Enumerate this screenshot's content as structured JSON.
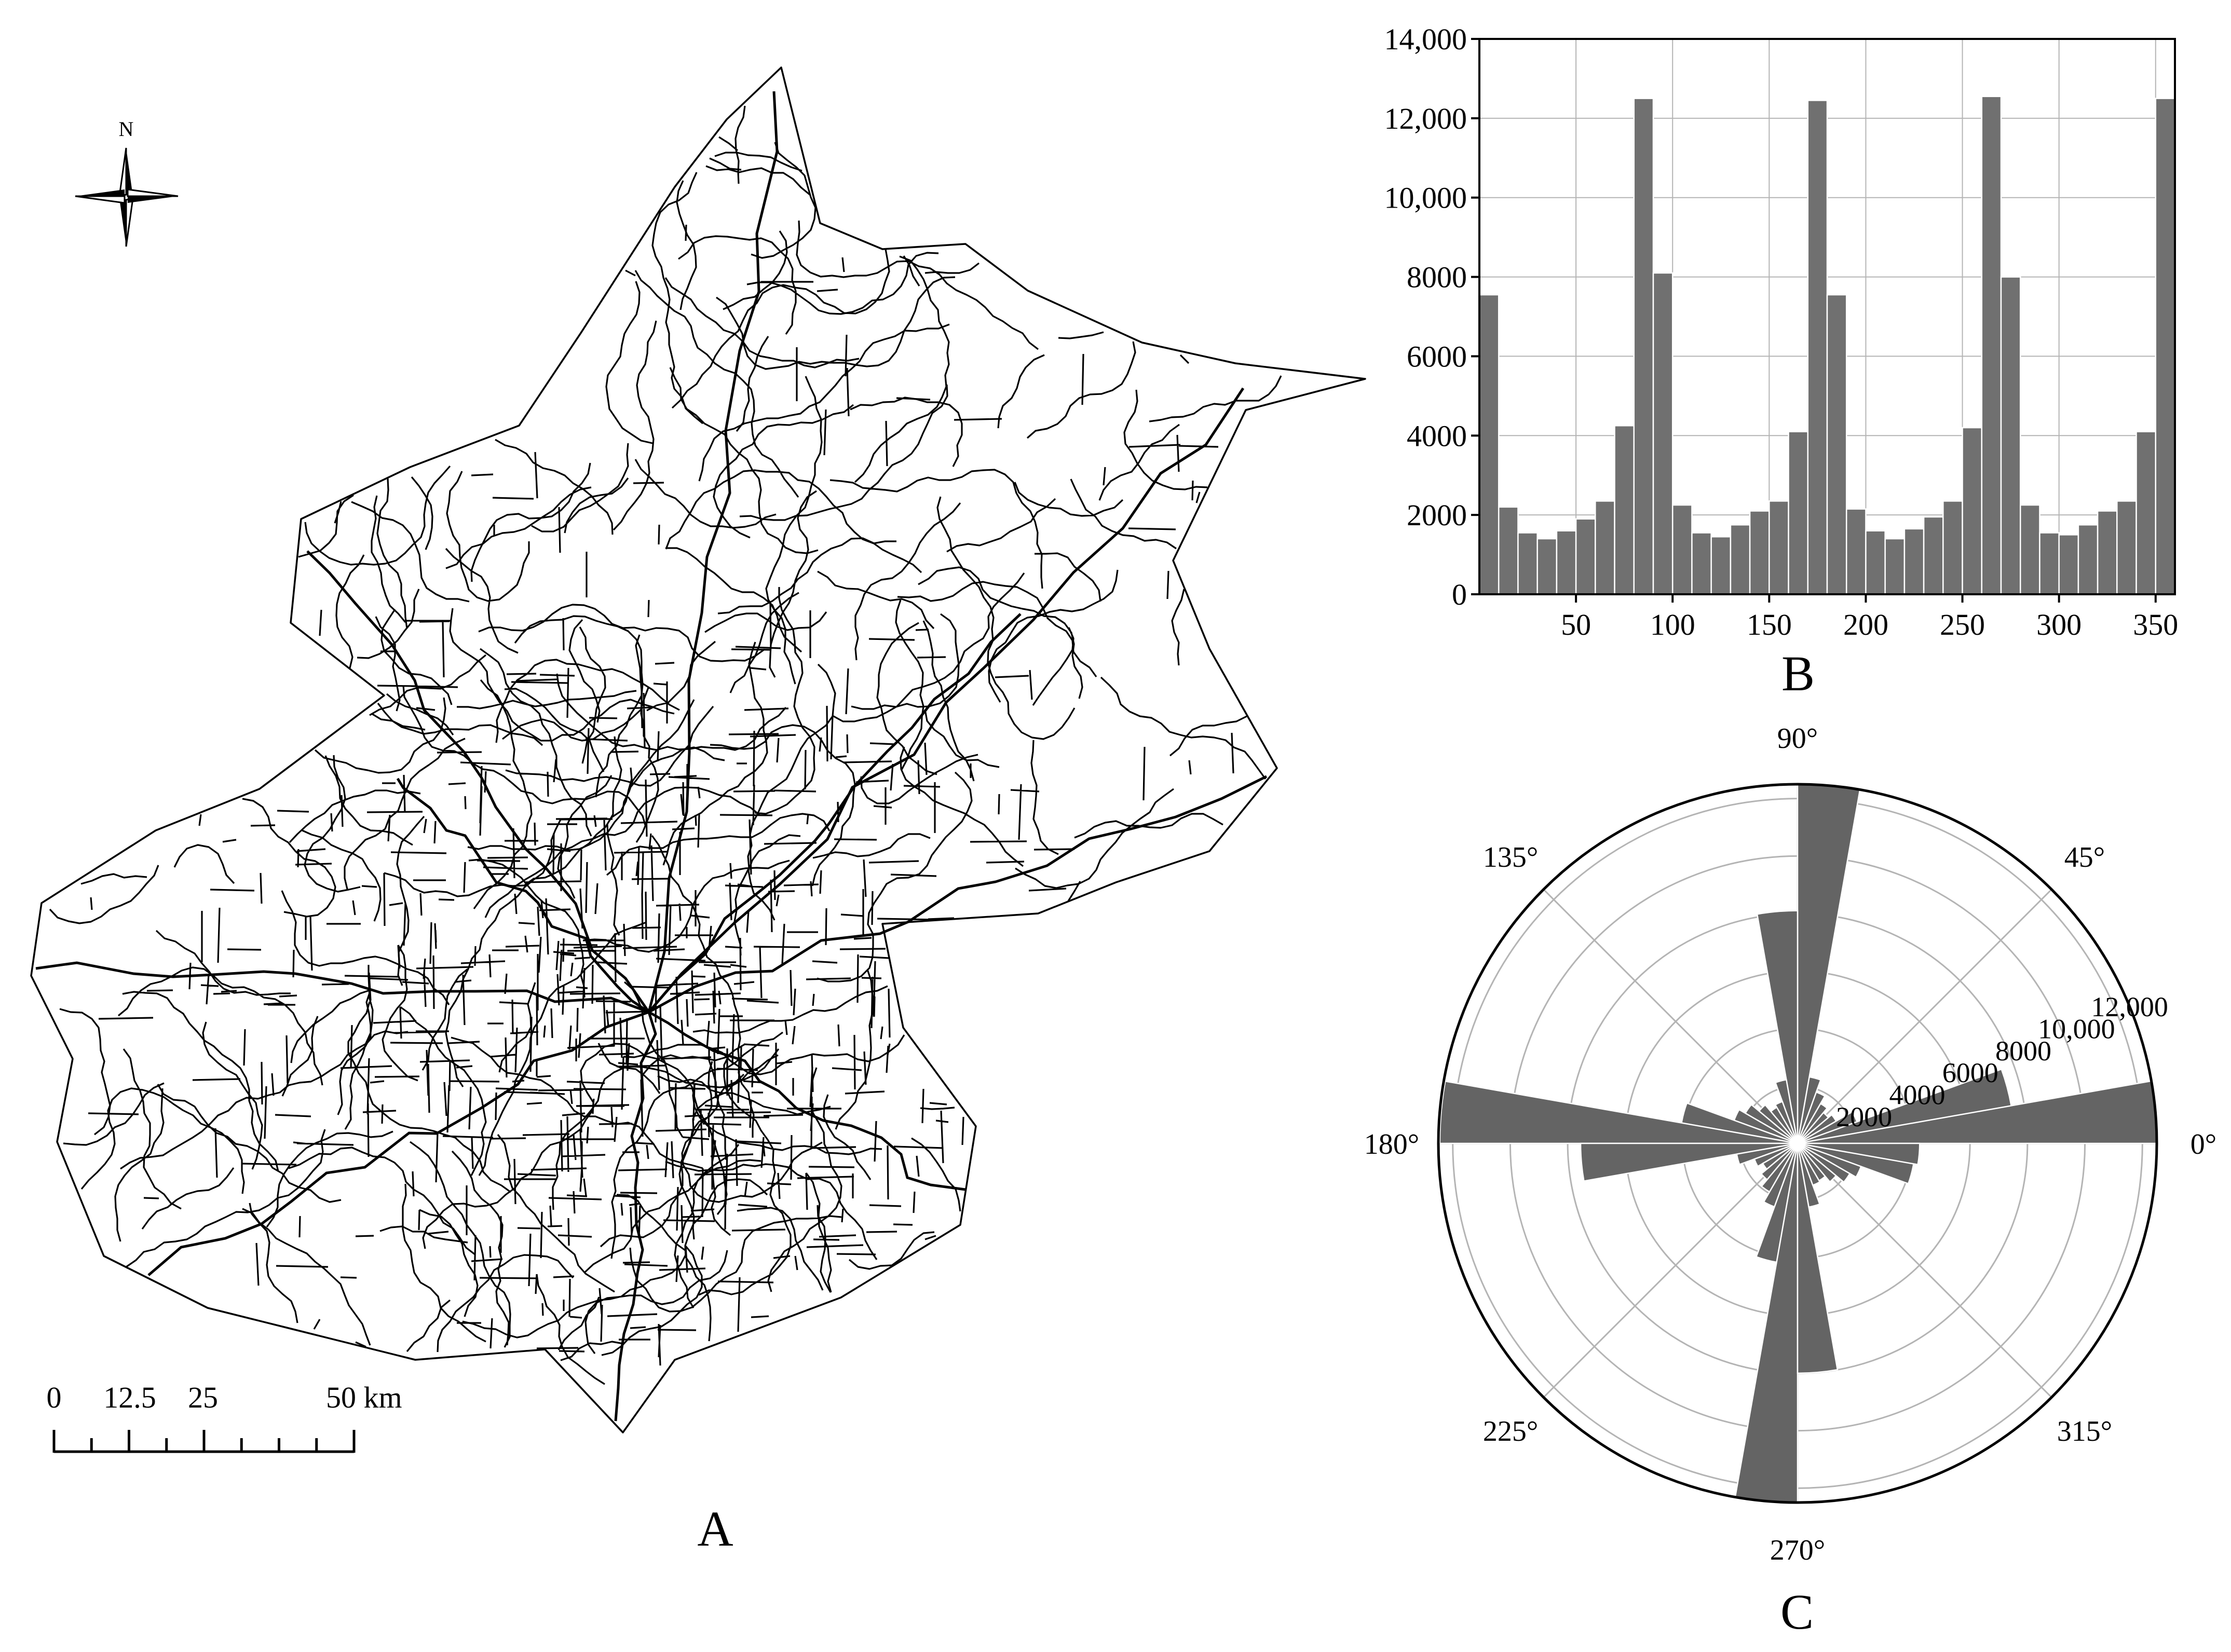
{
  "figure": {
    "panels": [
      {
        "label": "A"
      },
      {
        "label": "B"
      },
      {
        "label": "C"
      }
    ]
  },
  "map": {
    "north_arrow": {
      "label": "N",
      "icon": "compass-rose-icon"
    },
    "scale_bar": {
      "ticks": [
        "0",
        "12.5",
        "25",
        "50 km"
      ],
      "tick_values_km": [
        0,
        12.5,
        25,
        50
      ],
      "minor_divisions": 8
    },
    "road_network": {
      "color": "#000000",
      "background": "#ffffff"
    }
  },
  "chart_data": [
    {
      "type": "bar",
      "panel": "B",
      "bin_width": 10,
      "x": [
        5,
        15,
        25,
        35,
        45,
        55,
        65,
        75,
        85,
        95,
        105,
        115,
        125,
        135,
        145,
        155,
        165,
        175,
        185,
        195,
        205,
        215,
        225,
        235,
        245,
        255,
        265,
        275,
        285,
        295,
        305,
        315,
        325,
        335,
        345,
        355
      ],
      "values": [
        7550,
        2200,
        1550,
        1400,
        1600,
        1900,
        2350,
        4250,
        12500,
        8100,
        2250,
        1550,
        1450,
        1750,
        2100,
        2350,
        4100,
        12450,
        7550,
        2150,
        1600,
        1400,
        1650,
        1950,
        2350,
        4200,
        12550,
        8000,
        2250,
        1550,
        1500,
        1750,
        2100,
        2350,
        4100,
        12500
      ],
      "xlim": [
        0,
        360
      ],
      "ylim": [
        0,
        14000
      ],
      "x_ticks": [
        "50",
        "100",
        "150",
        "200",
        "250",
        "300",
        "350"
      ],
      "x_tick_values": [
        50,
        100,
        150,
        200,
        250,
        300,
        350
      ],
      "y_ticks": [
        "0",
        "2000",
        "4000",
        "6000",
        "8000",
        "10,000",
        "12,000",
        "14,000"
      ],
      "y_tick_values": [
        0,
        2000,
        4000,
        6000,
        8000,
        10000,
        12000,
        14000
      ],
      "grid": true,
      "bar_color": "#707070"
    },
    {
      "type": "rose",
      "panel": "C",
      "bin_width_deg": 10,
      "angles_deg": [
        5,
        15,
        25,
        35,
        45,
        55,
        65,
        75,
        85,
        95,
        105,
        115,
        125,
        135,
        145,
        155,
        165,
        175,
        185,
        195,
        205,
        215,
        225,
        235,
        245,
        255,
        265,
        275,
        285,
        295,
        305,
        315,
        325,
        335,
        345,
        355
      ],
      "values": [
        12500,
        7550,
        2200,
        1550,
        1400,
        1600,
        1900,
        2350,
        12500,
        8100,
        2250,
        1550,
        1450,
        1750,
        2100,
        2350,
        4100,
        12450,
        7550,
        2150,
        1600,
        1400,
        1650,
        1950,
        2350,
        4200,
        12550,
        8000,
        2250,
        1550,
        1500,
        1750,
        2100,
        2350,
        4100,
        4250
      ],
      "r_max": 12500,
      "r_ticks": [
        "2000",
        "4000",
        "6000",
        "8000",
        "10,000",
        "12,000"
      ],
      "r_tick_values": [
        2000,
        4000,
        6000,
        8000,
        10000,
        12000
      ],
      "angle_labels": [
        "0°",
        "45°",
        "90°",
        "135°",
        "180°",
        "225°",
        "270°",
        "315°"
      ],
      "angle_label_values": [
        0,
        45,
        90,
        135,
        180,
        225,
        270,
        315
      ],
      "grid": true,
      "bar_color": "#646464"
    }
  ]
}
